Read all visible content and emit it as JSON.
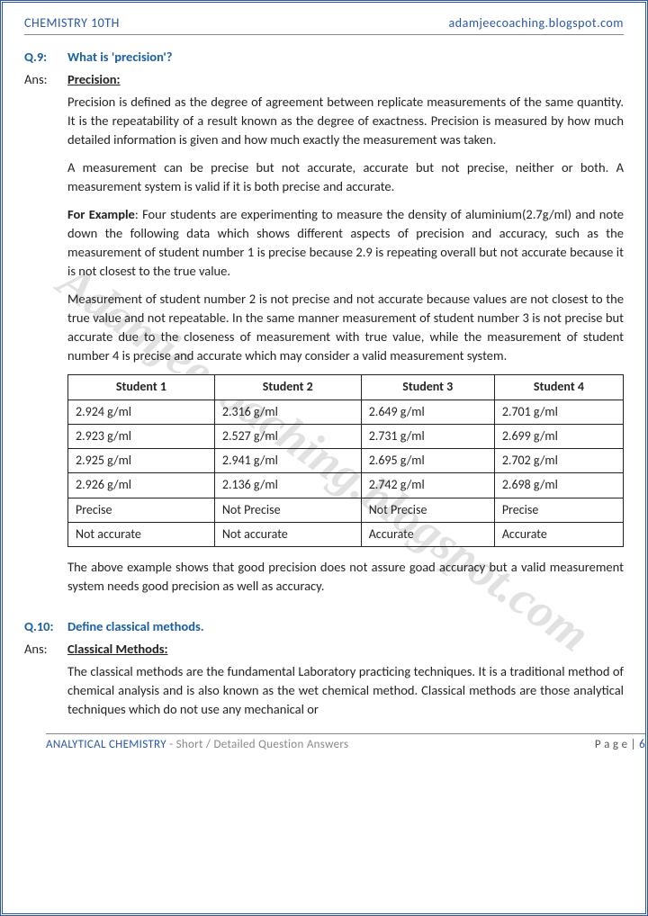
{
  "header": {
    "left": "CHEMISTRY 10TH",
    "right": "adamjeecoaching.blogspot.com"
  },
  "footer": {
    "left_bold": "ANALYTICAL CHEMISTRY",
    "left_rest": " - Short / Detailed Question Answers",
    "right_label": "P a g e  | ",
    "page_num": "6"
  },
  "watermark": "Adamjeecoaching.blogspot.com",
  "q9": {
    "label": "Q.9:",
    "question": "What is 'precision'?",
    "ans_label": "Ans:",
    "heading": "Precision:",
    "p1": "Precision is defined as the degree of agreement between replicate measurements of the same quantity. It is the repeatability of a result known as the degree of exactness. Precision is measured by how much detailed information is given and how much exactly the measurement was taken.",
    "p2": "A measurement can be precise but not accurate, accurate but not precise, neither or both. A measurement system is valid if it is both precise and accurate.",
    "p3_label": "For Example",
    "p3_rest": ": Four students are experimenting to measure the density of aluminium(2.7g/ml) and note down the following data which shows different aspects of precision and accuracy, such as the measurement of student number 1 is precise because 2.9 is repeating overall but not accurate because it is not closest to the true value.",
    "p4": "Measurement of student number 2 is not precise and not accurate because values are not closest to the true value and not repeatable. In the same manner measurement of student number 3 is not precise but accurate due to the closeness of measurement with true value, while the measurement of student number 4 is precise and accurate which may consider a valid measurement system.",
    "p5": "The above example shows that good precision does not assure goad accuracy but a valid measurement system needs good precision as well as accuracy."
  },
  "table": {
    "headers": [
      "Student 1",
      "Student 2",
      "Student 3",
      "Student 4"
    ],
    "rows": [
      [
        "2.924 g/ml",
        "2.316 g/ml",
        "2.649 g/ml",
        "2.701 g/ml"
      ],
      [
        "2.923 g/ml",
        "2.527 g/ml",
        "2.731 g/ml",
        "2.699 g/ml"
      ],
      [
        "2.925 g/ml",
        "2.941 g/ml",
        "2.695 g/ml",
        "2.702 g/ml"
      ],
      [
        "2.926 g/ml",
        "2.136 g/ml",
        "2.742 g/ml",
        "2.698 g/ml"
      ],
      [
        "Precise",
        "Not Precise",
        "Not Precise",
        "Precise"
      ],
      [
        "Not accurate",
        "Not accurate",
        "Accurate",
        "Accurate"
      ]
    ]
  },
  "q10": {
    "label": "Q.10:",
    "question": "Define classical methods.",
    "ans_label": "Ans:",
    "heading": "Classical Methods:",
    "p1": "The classical methods are the fundamental Laboratory practicing techniques. It is a traditional method of chemical analysis and is also known as the wet chemical method. Classical methods are those analytical techniques which do not use any mechanical or"
  }
}
